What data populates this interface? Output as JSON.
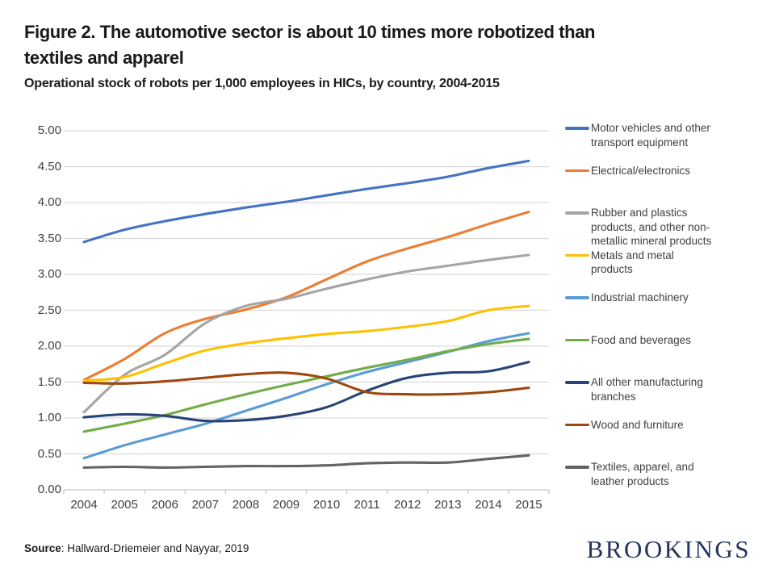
{
  "header": {
    "title": "Figure 2. The automotive sector is about 10 times more robotized than\ntextiles and apparel",
    "subtitle": "Operational stock of robots per 1,000 employees in HICs, by country, 2004-2015"
  },
  "footer": {
    "source_label": "Source",
    "source_text": ": Hallward-Driemeier and Nayyar, 2019",
    "logo_text": "BROOKINGS"
  },
  "chart_data": {
    "type": "line",
    "title": "Figure 2. The automotive sector is about 10 times more robotized than textiles and apparel",
    "subtitle": "Operational stock of robots per 1,000 employees in HICs, by country, 2004-2015",
    "x": [
      2004,
      2005,
      2006,
      2007,
      2008,
      2009,
      2010,
      2011,
      2012,
      2013,
      2014,
      2015
    ],
    "y_tick_labels": [
      "5.00",
      "4.50",
      "4.00",
      "3.50",
      "3.00",
      "2.50",
      "2.00",
      "1.50",
      "1.00",
      "0.50",
      "0.00"
    ],
    "ylim": [
      0,
      5
    ],
    "grid": true,
    "legend_position": "right",
    "line_smoothing": true,
    "grid_color": "#d9d9d9",
    "axis_color": "#c9c9c9",
    "series": [
      {
        "name": "Motor vehicles and other\ntransport equipment",
        "color": "#4472C4",
        "values": [
          3.45,
          3.62,
          3.74,
          3.84,
          3.93,
          4.01,
          4.1,
          4.19,
          4.27,
          4.36,
          4.48,
          4.58
        ]
      },
      {
        "name": "Electrical/electronics",
        "color": "#ED7D31",
        "values": [
          1.53,
          1.82,
          2.18,
          2.38,
          2.51,
          2.68,
          2.93,
          3.18,
          3.36,
          3.52,
          3.7,
          3.87
        ]
      },
      {
        "name": "Rubber and plastics\nproducts, and other non-\nmetallic mineral products",
        "color": "#A5A5A5",
        "values": [
          1.08,
          1.6,
          1.88,
          2.32,
          2.56,
          2.66,
          2.8,
          2.93,
          3.04,
          3.12,
          3.2,
          3.27
        ]
      },
      {
        "name": "Metals and metal\nproducts",
        "color": "#FFC000",
        "values": [
          1.52,
          1.57,
          1.76,
          1.94,
          2.04,
          2.11,
          2.17,
          2.21,
          2.27,
          2.35,
          2.5,
          2.56
        ]
      },
      {
        "name": "Industrial machinery",
        "color": "#5B9BD5",
        "values": [
          0.44,
          0.62,
          0.77,
          0.92,
          1.1,
          1.28,
          1.47,
          1.64,
          1.78,
          1.92,
          2.07,
          2.18
        ]
      },
      {
        "name": "Food and beverages",
        "color": "#70AD47",
        "values": [
          0.81,
          0.92,
          1.04,
          1.19,
          1.33,
          1.46,
          1.58,
          1.7,
          1.81,
          1.93,
          2.03,
          2.1
        ]
      },
      {
        "name": "All other manufacturing\nbranches",
        "color": "#264478",
        "values": [
          1.01,
          1.05,
          1.03,
          0.96,
          0.97,
          1.03,
          1.15,
          1.38,
          1.56,
          1.63,
          1.65,
          1.78
        ]
      },
      {
        "name": "Wood and furniture",
        "color": "#9E480E",
        "values": [
          1.49,
          1.48,
          1.51,
          1.56,
          1.61,
          1.63,
          1.55,
          1.36,
          1.33,
          1.33,
          1.36,
          1.42
        ]
      },
      {
        "name": "Textiles, apparel, and\nleather products",
        "color": "#636363",
        "values": [
          0.31,
          0.32,
          0.31,
          0.32,
          0.33,
          0.33,
          0.34,
          0.37,
          0.38,
          0.38,
          0.43,
          0.48
        ]
      }
    ]
  }
}
